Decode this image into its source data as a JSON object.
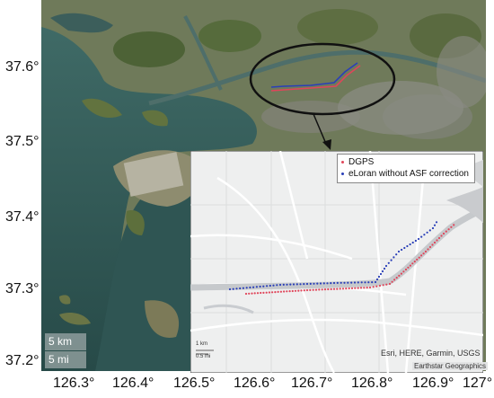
{
  "y_axis_ticks": [
    {
      "label": "37.6°"
    },
    {
      "label": "37.5°"
    },
    {
      "label": "37.4°"
    },
    {
      "label": "37.3°"
    },
    {
      "label": "37.2°"
    }
  ],
  "x_axis_ticks": [
    {
      "label": "126.3°"
    },
    {
      "label": "126.4°"
    },
    {
      "label": "126.5°"
    },
    {
      "label": "126.6°"
    },
    {
      "label": "126.7°"
    },
    {
      "label": "126.8°"
    },
    {
      "label": "126.9°"
    },
    {
      "label": "127°"
    }
  ],
  "main_map": {
    "scale_km": "5 km",
    "scale_mi": "5 mi"
  },
  "inset": {
    "legend": [
      {
        "label": "DGPS",
        "color": "#e0455a"
      },
      {
        "label": "eLoran without ASF correction",
        "color": "#2a3fb8"
      }
    ],
    "attribution": "Esri, HERE, Garmin, USGS",
    "basemap_credit": "Earthstar Geographics",
    "scale_km": "1 km",
    "scale_mi": "0.5 mi"
  }
}
